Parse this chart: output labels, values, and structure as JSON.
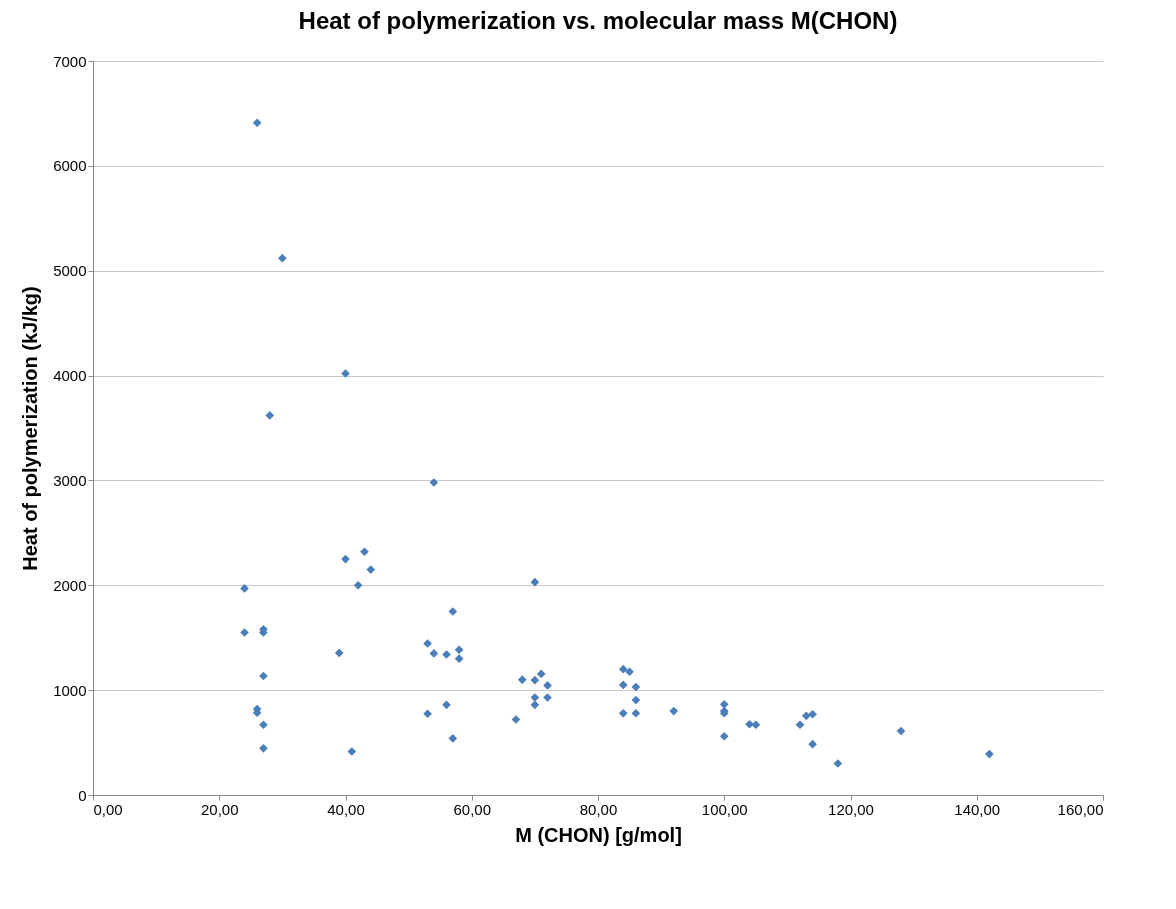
{
  "chart_data": {
    "type": "scatter",
    "title": "Heat of polymerization vs. molecular mass M(CHON)",
    "xlabel": "M (CHON)  [g/mol]",
    "ylabel": "Heat of polymerization (kJ/kg)",
    "xlim": [
      0,
      160
    ],
    "xticks": [
      {
        "value": 0,
        "label": "0,00"
      },
      {
        "value": 20,
        "label": "20,00"
      },
      {
        "value": 40,
        "label": "40,00"
      },
      {
        "value": 60,
        "label": "60,00"
      },
      {
        "value": 80,
        "label": "80,00"
      },
      {
        "value": 100,
        "label": "100,00"
      },
      {
        "value": 120,
        "label": "120,00"
      },
      {
        "value": 140,
        "label": "140,00"
      },
      {
        "value": 160,
        "label": "160,00"
      }
    ],
    "ylim": [
      0,
      7000
    ],
    "yticks": [
      0,
      1000,
      2000,
      3000,
      4000,
      5000,
      6000,
      7000
    ],
    "grid": "y",
    "marker": "diamond",
    "series": [
      {
        "color": "#4a7ebb",
        "x": [
          26,
          30,
          40,
          28,
          54,
          43,
          40,
          44,
          42,
          24,
          57,
          24,
          27,
          27,
          39,
          53,
          54,
          56,
          58,
          58,
          27,
          26,
          26,
          27,
          27,
          41,
          53,
          56,
          57,
          70,
          68,
          70,
          71,
          72,
          70,
          72,
          70,
          67,
          84,
          85,
          84,
          86,
          86,
          84,
          86,
          92,
          100,
          100,
          100,
          100,
          104,
          105,
          112,
          113,
          114,
          114,
          118,
          128,
          142
        ],
        "values": [
          6410,
          5120,
          4020,
          3620,
          2980,
          2320,
          2250,
          2150,
          2000,
          1970,
          1750,
          1550,
          1580,
          1550,
          1355,
          1445,
          1350,
          1340,
          1385,
          1300,
          1135,
          820,
          785,
          670,
          445,
          415,
          775,
          860,
          540,
          2030,
          1100,
          1095,
          1155,
          1045,
          930,
          930,
          860,
          720,
          1200,
          1175,
          1050,
          1030,
          905,
          780,
          780,
          800,
          865,
          800,
          780,
          560,
          675,
          670,
          670,
          755,
          770,
          485,
          300,
          610,
          390
        ]
      }
    ]
  }
}
